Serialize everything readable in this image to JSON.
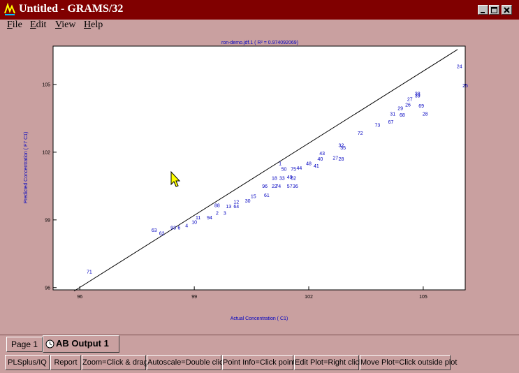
{
  "window": {
    "title": "Untitled - GRAMS/32",
    "icon": "grams-app-icon",
    "controls": [
      "minimize-icon",
      "maximize-icon",
      "close-icon"
    ]
  },
  "menu": {
    "items": [
      {
        "label": "File",
        "underline": "F"
      },
      {
        "label": "Edit",
        "underline": "E"
      },
      {
        "label": "View",
        "underline": "V"
      },
      {
        "label": "Help",
        "underline": "H"
      }
    ]
  },
  "tabs": [
    {
      "label": "Page 1",
      "active": false
    },
    {
      "label": "AB Output 1",
      "active": true,
      "icon": "clock-icon"
    }
  ],
  "status_buttons": [
    {
      "label": "PLSplus/IQ"
    },
    {
      "label": "Report"
    },
    {
      "label": "Zoom=Click & drag"
    },
    {
      "label": "Autoscale=Double click"
    },
    {
      "label": "Point Info=Click point"
    },
    {
      "label": "Edit Plot=Right click"
    },
    {
      "label": "Move Plot=Click outside plot"
    }
  ],
  "colors": {
    "title_bar": "#800000",
    "background": "#c9a0a0",
    "plot_text": "#0000c0"
  },
  "chart_data": {
    "type": "scatter",
    "title": "ron-demo.jdf.1  ( R² = 0.974092069)",
    "xlabel": "Actual Concentration ( C1)",
    "ylabel": "Predicted Concentration ( F7 C1)",
    "xlim": [
      95.3,
      106.1
    ],
    "ylim": [
      95.9,
      106.7
    ],
    "xticks": [
      "96",
      "99",
      "102",
      "105"
    ],
    "yticks": [
      "96",
      "99",
      "102",
      "105"
    ],
    "grid": false,
    "regression_line": {
      "x": [
        95.85,
        105.9
      ],
      "y": [
        95.85,
        106.55
      ]
    },
    "points": [
      {
        "label": "71",
        "x": 96.25,
        "y": 96.7
      },
      {
        "label": "63",
        "x": 97.95,
        "y": 98.55
      },
      {
        "label": "62",
        "x": 98.15,
        "y": 98.4
      },
      {
        "label": "93",
        "x": 98.45,
        "y": 98.65
      },
      {
        "label": "6",
        "x": 98.6,
        "y": 98.65
      },
      {
        "label": "4",
        "x": 98.8,
        "y": 98.75
      },
      {
        "label": "10",
        "x": 99.0,
        "y": 98.9
      },
      {
        "label": "11",
        "x": 99.1,
        "y": 99.1
      },
      {
        "label": "94",
        "x": 99.4,
        "y": 99.1
      },
      {
        "label": "2",
        "x": 99.6,
        "y": 99.3
      },
      {
        "label": "3",
        "x": 99.8,
        "y": 99.3
      },
      {
        "label": "88",
        "x": 99.6,
        "y": 99.65
      },
      {
        "label": "13",
        "x": 99.9,
        "y": 99.6
      },
      {
        "label": "64",
        "x": 100.1,
        "y": 99.6
      },
      {
        "label": "12",
        "x": 100.1,
        "y": 99.8
      },
      {
        "label": "30",
        "x": 100.4,
        "y": 99.85
      },
      {
        "label": "15",
        "x": 100.55,
        "y": 100.05
      },
      {
        "label": "61",
        "x": 100.9,
        "y": 100.1
      },
      {
        "label": "96",
        "x": 100.85,
        "y": 100.5
      },
      {
        "label": "22",
        "x": 101.1,
        "y": 100.5
      },
      {
        "label": "74",
        "x": 101.2,
        "y": 100.5
      },
      {
        "label": "57",
        "x": 101.5,
        "y": 100.5
      },
      {
        "label": "36",
        "x": 101.65,
        "y": 100.5
      },
      {
        "label": "18",
        "x": 101.1,
        "y": 100.85
      },
      {
        "label": "33",
        "x": 101.3,
        "y": 100.85
      },
      {
        "label": "49",
        "x": 101.5,
        "y": 100.9
      },
      {
        "label": "52",
        "x": 101.6,
        "y": 100.85
      },
      {
        "label": "50",
        "x": 101.35,
        "y": 101.25
      },
      {
        "label": "75",
        "x": 101.6,
        "y": 101.25
      },
      {
        "label": "1",
        "x": 101.25,
        "y": 101.5
      },
      {
        "label": "44",
        "x": 101.75,
        "y": 101.3
      },
      {
        "label": "48",
        "x": 102.0,
        "y": 101.5
      },
      {
        "label": "41",
        "x": 102.2,
        "y": 101.4
      },
      {
        "label": "40",
        "x": 102.3,
        "y": 101.7
      },
      {
        "label": "43",
        "x": 102.35,
        "y": 101.95
      },
      {
        "label": "27",
        "x": 102.7,
        "y": 101.75
      },
      {
        "label": "28",
        "x": 102.85,
        "y": 101.7
      },
      {
        "label": "32",
        "x": 102.85,
        "y": 102.3
      },
      {
        "label": "35",
        "x": 102.9,
        "y": 102.2
      },
      {
        "label": "72",
        "x": 103.35,
        "y": 102.85
      },
      {
        "label": "73",
        "x": 103.8,
        "y": 103.2
      },
      {
        "label": "67",
        "x": 104.15,
        "y": 103.35
      },
      {
        "label": "31",
        "x": 104.2,
        "y": 103.7
      },
      {
        "label": "29",
        "x": 104.4,
        "y": 103.95
      },
      {
        "label": "68",
        "x": 104.45,
        "y": 103.65
      },
      {
        "label": "26",
        "x": 104.6,
        "y": 104.1
      },
      {
        "label": "27",
        "x": 104.65,
        "y": 104.35
      },
      {
        "label": "38",
        "x": 104.85,
        "y": 104.6
      },
      {
        "label": "39",
        "x": 104.85,
        "y": 104.5
      },
      {
        "label": "69",
        "x": 104.95,
        "y": 104.05
      },
      {
        "label": "28",
        "x": 105.05,
        "y": 103.7
      },
      {
        "label": "24",
        "x": 105.95,
        "y": 105.8
      },
      {
        "label": "25",
        "x": 106.1,
        "y": 104.95
      }
    ]
  }
}
